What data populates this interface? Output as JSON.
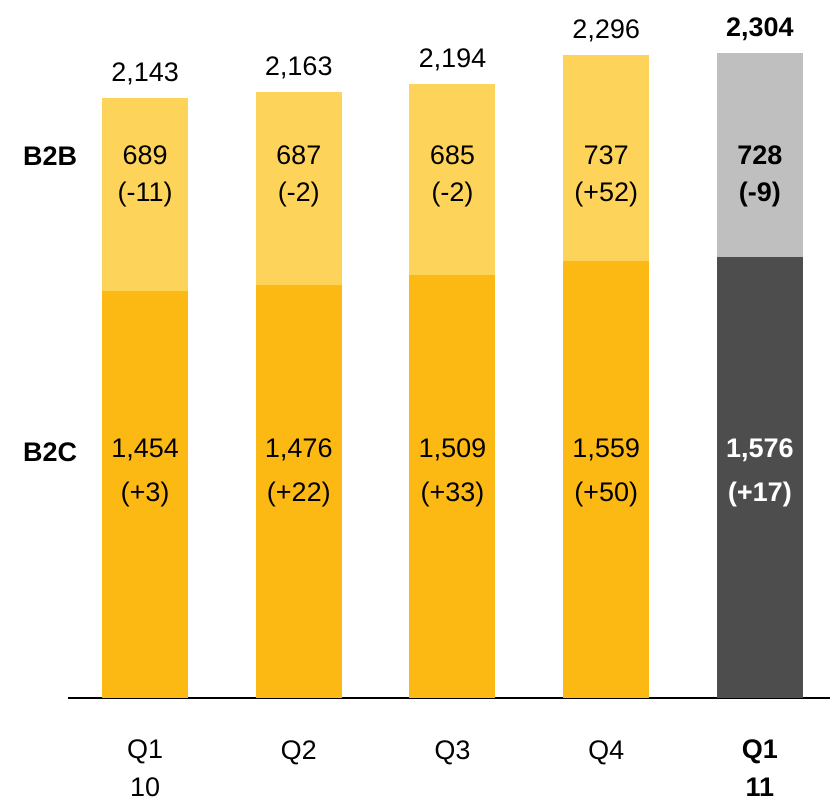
{
  "chart_data": {
    "type": "stacked-bar",
    "categories": [
      "Q1\n10",
      "Q2",
      "Q3",
      "Q4",
      "Q1\n11"
    ],
    "highlight_index": 4,
    "series": [
      {
        "name": "B2C",
        "values": [
          1454,
          1476,
          1509,
          1559,
          1576
        ],
        "value_labels": [
          "1,454",
          "1,476",
          "1,509",
          "1,559",
          "1,576"
        ],
        "changes": [
          "(+3)",
          "(+22)",
          "(+33)",
          "(+50)",
          "(+17)"
        ],
        "colors": [
          "#fdb913",
          "#fdb913",
          "#fdb913",
          "#fdb913",
          "#4d4d4d"
        ]
      },
      {
        "name": "B2B",
        "values": [
          689,
          687,
          685,
          737,
          728
        ],
        "value_labels": [
          "689",
          "687",
          "685",
          "737",
          "728"
        ],
        "changes": [
          "(-11)",
          "(-2)",
          "(-2)",
          "(+52)",
          "(-9)"
        ],
        "colors": [
          "#fed35a",
          "#fed35a",
          "#fed35a",
          "#fed35a",
          "#bfbfbf"
        ]
      }
    ],
    "totals": [
      2143,
      2163,
      2194,
      2296,
      2304
    ],
    "total_labels": [
      "2,143",
      "2,163",
      "2,194",
      "2,296",
      "2,304"
    ]
  }
}
